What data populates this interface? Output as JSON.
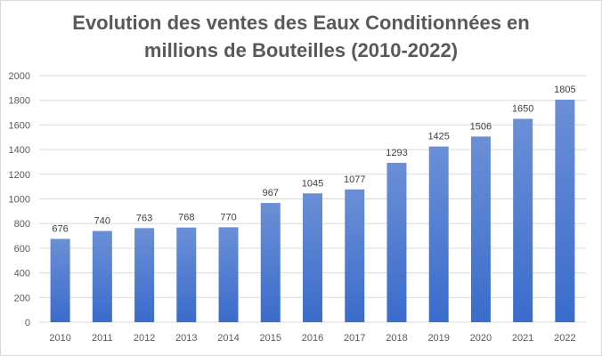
{
  "chart_data": {
    "type": "bar",
    "title_lines": [
      "Evolution des ventes des Eaux Conditionnées en",
      "millions de Bouteilles (2010-2022)"
    ],
    "categories": [
      "2010",
      "2011",
      "2012",
      "2013",
      "2014",
      "2015",
      "2016",
      "2017",
      "2018",
      "2019",
      "2020",
      "2021",
      "2022"
    ],
    "values": [
      676,
      740,
      763,
      768,
      770,
      967,
      1045,
      1077,
      1293,
      1425,
      1506,
      1650,
      1805
    ],
    "ylim": [
      0,
      2000
    ],
    "yticks": [
      0,
      200,
      400,
      600,
      800,
      1000,
      1200,
      1400,
      1600,
      1800,
      2000
    ],
    "grid": true,
    "legend": "none",
    "bar_color_top": "#6b8fd6",
    "bar_color_bottom": "#3a6ccc"
  }
}
